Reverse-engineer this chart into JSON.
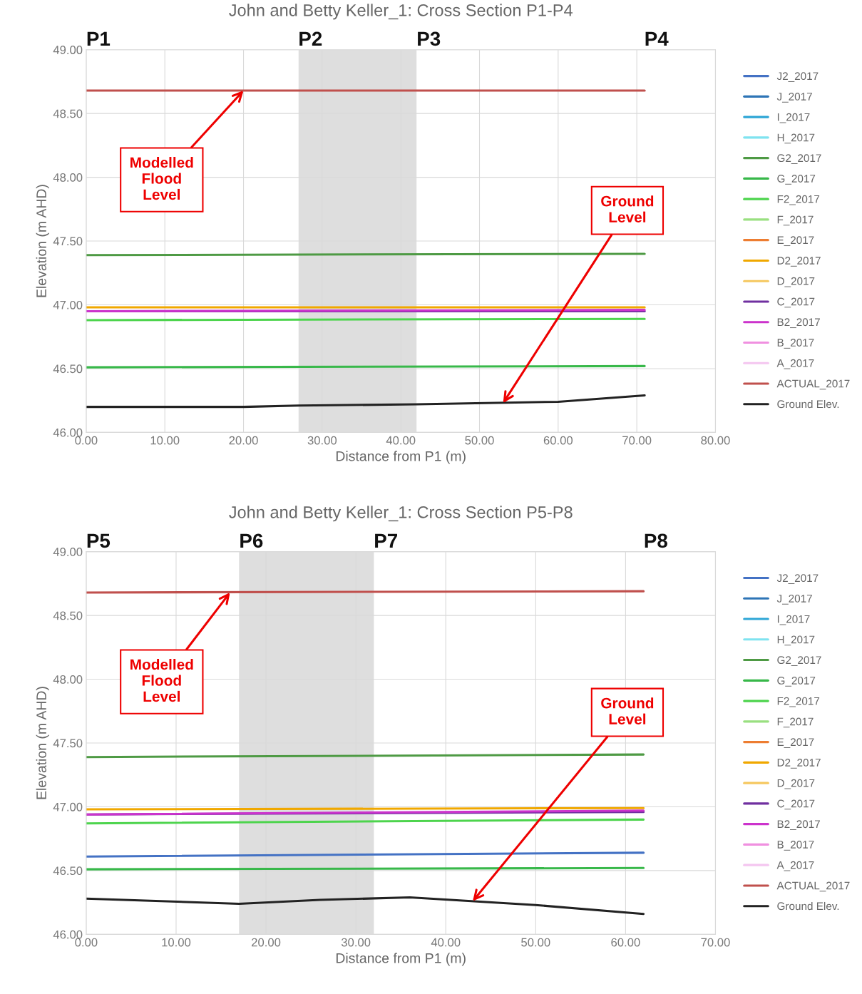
{
  "chart_data": [
    {
      "type": "line",
      "title": "John and Betty Keller_1: Cross Section P1-P4",
      "xlabel": "Distance from P1 (m)",
      "ylabel": "Elevation (m AHD)",
      "xlim": [
        0,
        80
      ],
      "xticks": [
        {
          "value": 0,
          "label": "0.00"
        },
        {
          "value": 10,
          "label": "10.00"
        },
        {
          "value": 20,
          "label": "20.00"
        },
        {
          "value": 30,
          "label": "30.00"
        },
        {
          "value": 40,
          "label": "40.00"
        },
        {
          "value": 50,
          "label": "50.00"
        },
        {
          "value": 60,
          "label": "60.00"
        },
        {
          "value": 70,
          "label": "70.00"
        },
        {
          "value": 80,
          "label": "80.00"
        }
      ],
      "ylim": [
        46,
        49
      ],
      "yticks": [
        {
          "value": 46,
          "label": "46.00"
        },
        {
          "value": 46.5,
          "label": "46.50"
        },
        {
          "value": 47,
          "label": "47.00"
        },
        {
          "value": 47.5,
          "label": "47.50"
        },
        {
          "value": 48,
          "label": "48.00"
        },
        {
          "value": 48.5,
          "label": "48.50"
        },
        {
          "value": 49,
          "label": "49.00"
        }
      ],
      "grid": true,
      "legend": "right",
      "line_style": "solid",
      "marker": "none",
      "bands": [
        {
          "axis": "x",
          "from": 27,
          "to": 42,
          "color": "#dedede"
        }
      ],
      "annotations": [
        "P1",
        "P2",
        "P3",
        "P4",
        {
          "text": "Modelled\nFlood\nLevel",
          "x": 20,
          "y": 48.68
        },
        {
          "text": "Ground\nLevel",
          "x": 53,
          "y": 46.23
        }
      ],
      "series": [
        {
          "name": "J2_2017",
          "color": "#4472c4",
          "values": [
            null
          ]
        },
        {
          "name": "J_2017",
          "color": "#2e75b6",
          "values": [
            null
          ]
        },
        {
          "name": "I_2017",
          "color": "#2ea6d6",
          "values": [
            null
          ]
        },
        {
          "name": "H_2017",
          "color": "#7fe3f0",
          "values": [
            null
          ]
        },
        {
          "name": "G2_2017",
          "color": "#4e9a44",
          "x": [
            0,
            71
          ],
          "values": [
            47.39,
            47.4
          ]
        },
        {
          "name": "G_2017",
          "color": "#38b84a",
          "x": [
            0,
            71
          ],
          "values": [
            46.51,
            46.52
          ]
        },
        {
          "name": "F2_2017",
          "color": "#4dd44d",
          "x": [
            0,
            71
          ],
          "values": [
            46.88,
            46.89
          ]
        },
        {
          "name": "F_2017",
          "color": "#99e080",
          "values": [
            null
          ]
        },
        {
          "name": "E_2017",
          "color": "#ed7d31",
          "values": [
            null
          ]
        },
        {
          "name": "D2_2017",
          "color": "#f0a800",
          "x": [
            0,
            71
          ],
          "values": [
            46.98,
            46.98
          ]
        },
        {
          "name": "D_2017",
          "color": "#f5c860",
          "values": [
            null
          ]
        },
        {
          "name": "C_2017",
          "color": "#7030a0",
          "x": [
            0,
            71
          ],
          "values": [
            46.95,
            46.95
          ]
        },
        {
          "name": "B2_2017",
          "color": "#cc33cc",
          "x": [
            0,
            71
          ],
          "values": [
            46.95,
            46.96
          ]
        },
        {
          "name": "B_2017",
          "color": "#f090e0",
          "values": [
            null
          ]
        },
        {
          "name": "A_2017",
          "color": "#f4c6f0",
          "values": [
            null
          ]
        },
        {
          "name": "ACTUAL_2017",
          "color": "#c0504d",
          "x": [
            0,
            71
          ],
          "values": [
            48.68,
            48.68
          ]
        },
        {
          "name": "Ground Elev.",
          "color": "#222222",
          "x": [
            0,
            20,
            27,
            42,
            60,
            71
          ],
          "values": [
            46.2,
            46.2,
            46.21,
            46.22,
            46.24,
            46.29
          ]
        }
      ]
    },
    {
      "type": "line",
      "title": "John and Betty Keller_1: Cross Section P5-P8",
      "xlabel": "Distance from P1 (m)",
      "ylabel": "Elevation (m AHD)",
      "xlim": [
        0,
        70
      ],
      "xticks": [
        {
          "value": 0,
          "label": "0.00"
        },
        {
          "value": 10,
          "label": "10.00"
        },
        {
          "value": 20,
          "label": "20.00"
        },
        {
          "value": 30,
          "label": "30.00"
        },
        {
          "value": 40,
          "label": "40.00"
        },
        {
          "value": 50,
          "label": "50.00"
        },
        {
          "value": 60,
          "label": "60.00"
        },
        {
          "value": 70,
          "label": "70.00"
        }
      ],
      "ylim": [
        46,
        49
      ],
      "yticks": [
        {
          "value": 46,
          "label": "46.00"
        },
        {
          "value": 46.5,
          "label": "46.50"
        },
        {
          "value": 47,
          "label": "47.00"
        },
        {
          "value": 47.5,
          "label": "47.50"
        },
        {
          "value": 48,
          "label": "48.00"
        },
        {
          "value": 48.5,
          "label": "48.50"
        },
        {
          "value": 49,
          "label": "49.00"
        }
      ],
      "grid": true,
      "legend": "right",
      "line_style": "solid",
      "marker": "none",
      "bands": [
        {
          "axis": "x",
          "from": 17,
          "to": 32,
          "color": "#dedede"
        }
      ],
      "annotations": [
        "P5",
        "P6",
        "P7",
        "P8",
        {
          "text": "Modelled\nFlood\nLevel",
          "x": 16,
          "y": 48.68
        },
        {
          "text": "Ground\nLevel",
          "x": 43,
          "y": 46.26
        }
      ],
      "series": [
        {
          "name": "J2_2017",
          "color": "#4472c4",
          "x": [
            0,
            62
          ],
          "values": [
            46.61,
            46.64
          ]
        },
        {
          "name": "J_2017",
          "color": "#2e75b6",
          "values": [
            null
          ]
        },
        {
          "name": "I_2017",
          "color": "#2ea6d6",
          "values": [
            null
          ]
        },
        {
          "name": "H_2017",
          "color": "#7fe3f0",
          "values": [
            null
          ]
        },
        {
          "name": "G2_2017",
          "color": "#4e9a44",
          "x": [
            0,
            62
          ],
          "values": [
            47.39,
            47.41
          ]
        },
        {
          "name": "G_2017",
          "color": "#38b84a",
          "x": [
            0,
            62
          ],
          "values": [
            46.51,
            46.52
          ]
        },
        {
          "name": "F2_2017",
          "color": "#4dd44d",
          "x": [
            0,
            62
          ],
          "values": [
            46.87,
            46.9
          ]
        },
        {
          "name": "F_2017",
          "color": "#99e080",
          "values": [
            null
          ]
        },
        {
          "name": "E_2017",
          "color": "#ed7d31",
          "values": [
            null
          ]
        },
        {
          "name": "D2_2017",
          "color": "#f0a800",
          "x": [
            0,
            62
          ],
          "values": [
            46.98,
            46.99
          ]
        },
        {
          "name": "D_2017",
          "color": "#f5c860",
          "values": [
            null
          ]
        },
        {
          "name": "C_2017",
          "color": "#7030a0",
          "x": [
            0,
            62
          ],
          "values": [
            46.94,
            46.96
          ]
        },
        {
          "name": "B2_2017",
          "color": "#cc33cc",
          "x": [
            0,
            62
          ],
          "values": [
            46.94,
            46.97
          ]
        },
        {
          "name": "B_2017",
          "color": "#f090e0",
          "values": [
            null
          ]
        },
        {
          "name": "A_2017",
          "color": "#f4c6f0",
          "values": [
            null
          ]
        },
        {
          "name": "ACTUAL_2017",
          "color": "#c0504d",
          "x": [
            0,
            62
          ],
          "values": [
            48.68,
            48.69
          ]
        },
        {
          "name": "Ground Elev.",
          "color": "#222222",
          "x": [
            0,
            17,
            26,
            36,
            50,
            62
          ],
          "values": [
            46.28,
            46.24,
            46.27,
            46.29,
            46.23,
            46.16
          ]
        }
      ]
    }
  ]
}
